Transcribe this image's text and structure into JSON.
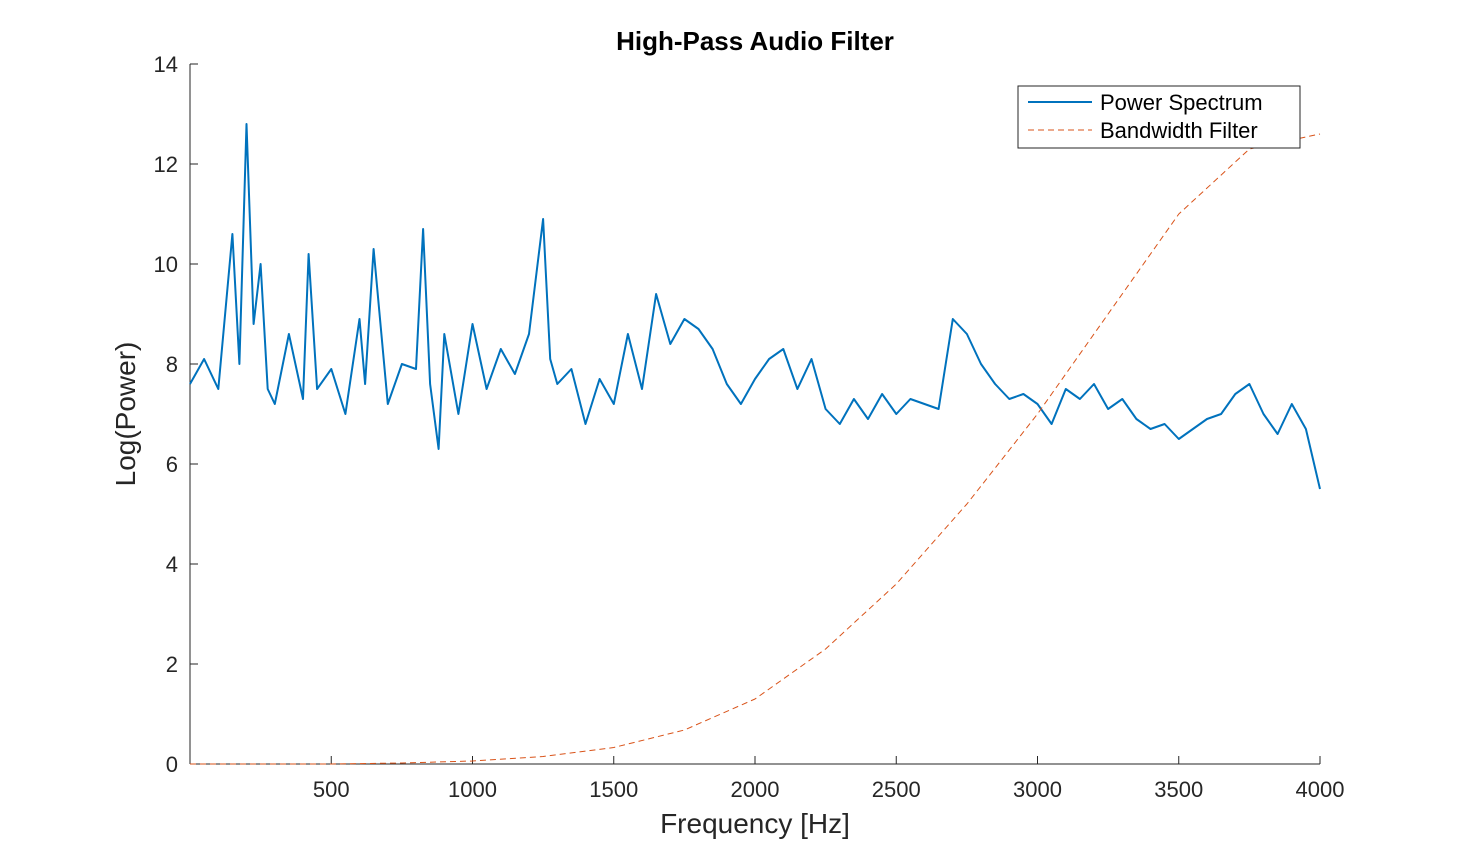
{
  "chart_data": {
    "type": "line",
    "title": "High-Pass Audio Filter",
    "xlabel": "Frequency [Hz]",
    "ylabel": "Log(Power)",
    "xlim": [
      0,
      4000
    ],
    "ylim": [
      0,
      14
    ],
    "xticks": [
      500,
      1000,
      1500,
      2000,
      2500,
      3000,
      3500,
      4000
    ],
    "xtick_labels": [
      "500",
      "1000",
      "1500",
      "2000",
      "2500",
      "3000",
      "3500",
      "4000"
    ],
    "yticks": [
      0,
      2,
      4,
      6,
      8,
      10,
      12,
      14
    ],
    "ytick_labels": [
      "0",
      "2",
      "4",
      "6",
      "8",
      "10",
      "12",
      "14"
    ],
    "grid": false,
    "legend_position": "top-right",
    "series": [
      {
        "name": "Power Spectrum",
        "color": "#0072BD",
        "style": "solid",
        "x": [
          0,
          50,
          100,
          150,
          175,
          200,
          225,
          250,
          275,
          300,
          350,
          400,
          420,
          450,
          500,
          550,
          600,
          620,
          650,
          700,
          750,
          800,
          825,
          850,
          880,
          900,
          950,
          1000,
          1050,
          1100,
          1150,
          1200,
          1250,
          1275,
          1300,
          1350,
          1400,
          1450,
          1500,
          1550,
          1600,
          1650,
          1700,
          1750,
          1800,
          1850,
          1900,
          1950,
          2000,
          2050,
          2100,
          2150,
          2200,
          2250,
          2300,
          2350,
          2400,
          2450,
          2500,
          2550,
          2600,
          2650,
          2700,
          2750,
          2800,
          2850,
          2900,
          2950,
          3000,
          3050,
          3100,
          3150,
          3200,
          3250,
          3300,
          3350,
          3400,
          3450,
          3500,
          3550,
          3600,
          3650,
          3700,
          3750,
          3800,
          3850,
          3900,
          3950,
          4000
        ],
        "values": [
          7.6,
          8.1,
          7.5,
          10.6,
          8.0,
          12.8,
          8.8,
          10.0,
          7.5,
          7.2,
          8.6,
          7.3,
          10.2,
          7.5,
          7.9,
          7.0,
          8.9,
          7.6,
          10.3,
          7.2,
          8.0,
          7.9,
          10.7,
          7.6,
          6.3,
          8.6,
          7.0,
          8.8,
          7.5,
          8.3,
          7.8,
          8.6,
          10.9,
          8.1,
          7.6,
          7.9,
          6.8,
          7.7,
          7.2,
          8.6,
          7.5,
          9.4,
          8.4,
          8.9,
          8.7,
          8.3,
          7.6,
          7.2,
          7.7,
          8.1,
          8.3,
          7.5,
          8.1,
          7.1,
          6.8,
          7.3,
          6.9,
          7.4,
          7.0,
          7.3,
          7.2,
          7.1,
          8.9,
          8.6,
          8.0,
          7.6,
          7.3,
          7.4,
          7.2,
          6.8,
          7.5,
          7.3,
          7.6,
          7.1,
          7.3,
          6.9,
          6.7,
          6.8,
          6.5,
          6.7,
          6.9,
          7.0,
          7.4,
          7.6,
          7.0,
          6.6,
          7.2,
          6.7,
          5.5
        ]
      },
      {
        "name": "Bandwidth Filter",
        "color": "#D95319",
        "style": "dashed",
        "x": [
          0,
          250,
          500,
          750,
          1000,
          1250,
          1500,
          1750,
          2000,
          2250,
          2500,
          2750,
          3000,
          3250,
          3500,
          3750,
          4000
        ],
        "values": [
          0.0,
          0.0,
          0.0,
          0.02,
          0.06,
          0.15,
          0.33,
          0.68,
          1.3,
          2.3,
          3.6,
          5.2,
          7.0,
          9.0,
          11.0,
          12.3,
          12.6
        ]
      }
    ]
  }
}
